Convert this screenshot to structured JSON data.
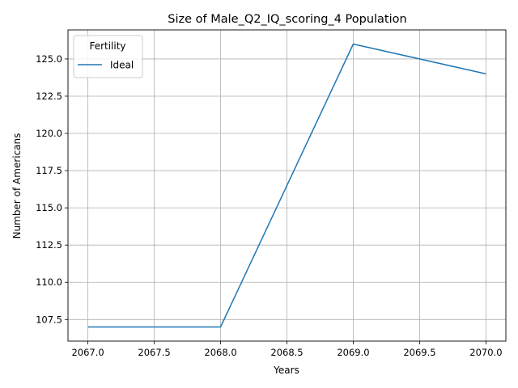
{
  "chart_data": {
    "type": "line",
    "title": "Size of Male_Q2_IQ_scoring_4 Population",
    "xlabel": "Years",
    "ylabel": "Number of Americans",
    "xlim": [
      2066.85,
      2070.15
    ],
    "ylim": [
      106.05,
      126.95
    ],
    "xticks": [
      2067.0,
      2067.5,
      2068.0,
      2068.5,
      2069.0,
      2069.5,
      2070.0
    ],
    "xtick_labels": [
      "2067.0",
      "2067.5",
      "2068.0",
      "2068.5",
      "2069.0",
      "2069.5",
      "2070.0"
    ],
    "yticks": [
      107.5,
      110.0,
      112.5,
      115.0,
      117.5,
      120.0,
      122.5,
      125.0
    ],
    "ytick_labels": [
      "107.5",
      "110.0",
      "112.5",
      "115.0",
      "117.5",
      "120.0",
      "122.5",
      "125.0"
    ],
    "grid": true,
    "legend": {
      "title": "Fertility",
      "placement": "top-left"
    },
    "series": [
      {
        "name": "Ideal",
        "color": "#1f77b4",
        "x": [
          2067,
          2068,
          2069,
          2070
        ],
        "y": [
          107,
          107,
          126,
          124
        ]
      }
    ]
  }
}
